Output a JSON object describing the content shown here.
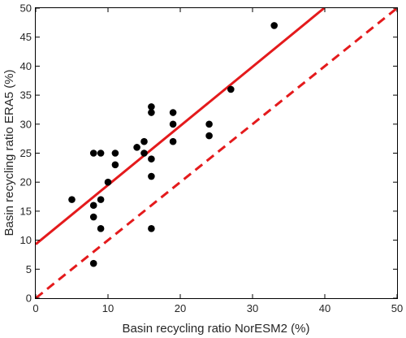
{
  "chart_data": {
    "type": "scatter",
    "title": "",
    "xlabel": "Basin recycling ratio NorESM2 (%)",
    "ylabel": "Basin recycling ratio ERA5 (%)",
    "xlim": [
      0,
      50
    ],
    "ylim": [
      0,
      50
    ],
    "xticks": [
      0,
      10,
      20,
      30,
      40,
      50
    ],
    "yticks": [
      0,
      5,
      10,
      15,
      20,
      25,
      30,
      35,
      40,
      45,
      50
    ],
    "grid": false,
    "legend": "none",
    "points": [
      {
        "x": 5,
        "y": 17
      },
      {
        "x": 8,
        "y": 25
      },
      {
        "x": 8,
        "y": 16
      },
      {
        "x": 8,
        "y": 14
      },
      {
        "x": 8,
        "y": 6
      },
      {
        "x": 9,
        "y": 25
      },
      {
        "x": 9,
        "y": 17
      },
      {
        "x": 9,
        "y": 12
      },
      {
        "x": 10,
        "y": 20
      },
      {
        "x": 11,
        "y": 25
      },
      {
        "x": 11,
        "y": 23
      },
      {
        "x": 14,
        "y": 26
      },
      {
        "x": 15,
        "y": 27
      },
      {
        "x": 15,
        "y": 25
      },
      {
        "x": 16,
        "y": 33
      },
      {
        "x": 16,
        "y": 32
      },
      {
        "x": 16,
        "y": 24
      },
      {
        "x": 16,
        "y": 21
      },
      {
        "x": 16,
        "y": 12
      },
      {
        "x": 19,
        "y": 32
      },
      {
        "x": 19,
        "y": 30
      },
      {
        "x": 19,
        "y": 27
      },
      {
        "x": 24,
        "y": 30
      },
      {
        "x": 24,
        "y": 28
      },
      {
        "x": 27,
        "y": 36
      },
      {
        "x": 33,
        "y": 47
      }
    ],
    "lines": [
      {
        "style": "solid",
        "color": "#e41a1c",
        "intercept": 9.3,
        "slope": 1.02
      },
      {
        "style": "dashed",
        "color": "#e41a1c",
        "intercept": 0,
        "slope": 1
      }
    ]
  }
}
